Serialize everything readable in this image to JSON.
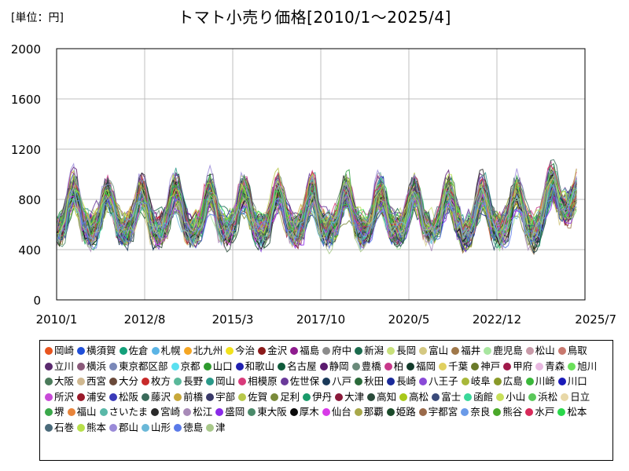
{
  "unit_label": "[単位：円]",
  "chart_data": {
    "type": "line",
    "title": "トマト小売り価格[2010/1～2025/4]",
    "xlabel": "",
    "ylabel": "",
    "x_ticks": [
      "2010/1",
      "2012/8",
      "2015/3",
      "2017/10",
      "2020/5",
      "2022/12",
      "2025/7"
    ],
    "y_ticks": [
      0,
      400,
      800,
      1200,
      1600,
      2000
    ],
    "ylim": [
      0,
      2000
    ],
    "xlim": [
      "2010/1",
      "2025/7"
    ],
    "grid": true,
    "legend_position": "bottom",
    "series": [
      {
        "name": "岡崎",
        "color": "#e8541e"
      },
      {
        "name": "横須賀",
        "color": "#1f4ed8"
      },
      {
        "name": "佐倉",
        "color": "#13a07a"
      },
      {
        "name": "札幌",
        "color": "#5bb4e5"
      },
      {
        "name": "北九州",
        "color": "#f5a623"
      },
      {
        "name": "今治",
        "color": "#f2e21b"
      },
      {
        "name": "金沢",
        "color": "#8b1a1a"
      },
      {
        "name": "福島",
        "color": "#8e1b8e"
      },
      {
        "name": "府中",
        "color": "#8c8c8c"
      },
      {
        "name": "新潟",
        "color": "#1b6b4e"
      },
      {
        "name": "長岡",
        "color": "#c8e07a"
      },
      {
        "name": "富山",
        "color": "#d4c882"
      },
      {
        "name": "福井",
        "color": "#a0784a"
      },
      {
        "name": "鹿児島",
        "color": "#a8e6a0"
      },
      {
        "name": "松山",
        "color": "#c89aa8"
      },
      {
        "name": "鳥取",
        "color": "#c8786e"
      },
      {
        "name": "立川",
        "color": "#5a2a6e"
      },
      {
        "name": "横浜",
        "color": "#8a5a7a"
      },
      {
        "name": "東京都区部",
        "color": "#7a88b8"
      },
      {
        "name": "京都",
        "color": "#5ae0f0"
      },
      {
        "name": "山口",
        "color": "#2e9a2e"
      },
      {
        "name": "和歌山",
        "color": "#2020b0"
      },
      {
        "name": "名古屋",
        "color": "#0e5a3a"
      },
      {
        "name": "静岡",
        "color": "#5a1a6e"
      },
      {
        "name": "豊橋",
        "color": "#6a8a7a"
      },
      {
        "name": "柏",
        "color": "#c8388a"
      },
      {
        "name": "福岡",
        "color": "#123a2a"
      },
      {
        "name": "千葉",
        "color": "#e0d060"
      },
      {
        "name": "神戸",
        "color": "#6a7a2a"
      },
      {
        "name": "甲府",
        "color": "#a01a4a"
      },
      {
        "name": "青森",
        "color": "#e8b8e0"
      },
      {
        "name": "旭川",
        "color": "#6ae05a"
      },
      {
        "name": "大阪",
        "color": "#4a7a5a"
      },
      {
        "name": "西宮",
        "color": "#d0b890"
      },
      {
        "name": "大分",
        "color": "#6a4a3a"
      },
      {
        "name": "枚方",
        "color": "#c82a2a"
      },
      {
        "name": "長野",
        "color": "#5ab89a"
      },
      {
        "name": "岡山",
        "color": "#2a9a8a"
      },
      {
        "name": "相模原",
        "color": "#d83a7a"
      },
      {
        "name": "佐世保",
        "color": "#6a3a9a"
      },
      {
        "name": "八戸",
        "color": "#1a3a5a"
      },
      {
        "name": "秋田",
        "color": "#2a6a3a"
      },
      {
        "name": "長崎",
        "color": "#1a2a9a"
      },
      {
        "name": "八王子",
        "color": "#8a4ad8"
      },
      {
        "name": "岐阜",
        "color": "#a8b83a"
      },
      {
        "name": "広島",
        "color": "#8a9a2a"
      },
      {
        "name": "川崎",
        "color": "#3ab83a"
      },
      {
        "name": "川口",
        "color": "#1a1ab8"
      },
      {
        "name": "所沢",
        "color": "#c84ad8"
      },
      {
        "name": "浦安",
        "color": "#9a1a2a"
      },
      {
        "name": "松阪",
        "color": "#3a3ab8"
      },
      {
        "name": "藤沢",
        "color": "#3a6a5a"
      },
      {
        "name": "前橋",
        "color": "#c8a83a"
      },
      {
        "name": "宇部",
        "color": "#3a3a6a"
      },
      {
        "name": "佐賀",
        "color": "#b8c84a"
      },
      {
        "name": "足利",
        "color": "#7a8a3a"
      },
      {
        "name": "伊丹",
        "color": "#1a9a6a"
      },
      {
        "name": "大津",
        "color": "#8a1a3a"
      },
      {
        "name": "高知",
        "color": "#2a4a3a"
      },
      {
        "name": "高松",
        "color": "#a8c81a"
      },
      {
        "name": "富士",
        "color": "#3a4a7a"
      },
      {
        "name": "函館",
        "color": "#3ad89a"
      },
      {
        "name": "小山",
        "color": "#c8e05a"
      },
      {
        "name": "浜松",
        "color": "#5ac85a"
      },
      {
        "name": "日立",
        "color": "#e8d8a8"
      },
      {
        "name": "堺",
        "color": "#3aa84a"
      },
      {
        "name": "福山",
        "color": "#e8843a"
      },
      {
        "name": "さいたま",
        "color": "#5ab8a8"
      },
      {
        "name": "宮崎",
        "color": "#2a2a2a"
      },
      {
        "name": "松江",
        "color": "#a88ab8"
      },
      {
        "name": "盛岡",
        "color": "#8a2ae8"
      },
      {
        "name": "東大阪",
        "color": "#4a8a6a"
      },
      {
        "name": "厚木",
        "color": "#0a0a0a"
      },
      {
        "name": "仙台",
        "color": "#d83ae8"
      },
      {
        "name": "那覇",
        "color": "#a8a84a"
      },
      {
        "name": "姫路",
        "color": "#1a4a2a"
      },
      {
        "name": "宇都宮",
        "color": "#9a6a4a"
      },
      {
        "name": "奈良",
        "color": "#6a9ae8"
      },
      {
        "name": "熊谷",
        "color": "#4aa82a"
      },
      {
        "name": "水戸",
        "color": "#d82a5a"
      },
      {
        "name": "松本",
        "color": "#2ad84a"
      },
      {
        "name": "石巻",
        "color": "#4a6a7a"
      },
      {
        "name": "熊本",
        "color": "#b8e04a"
      },
      {
        "name": "郡山",
        "color": "#9a8ad8"
      },
      {
        "name": "山形",
        "color": "#6ab8d8"
      },
      {
        "name": "徳島",
        "color": "#5a7ae8"
      },
      {
        "name": "津",
        "color": "#a8c88a"
      }
    ]
  }
}
